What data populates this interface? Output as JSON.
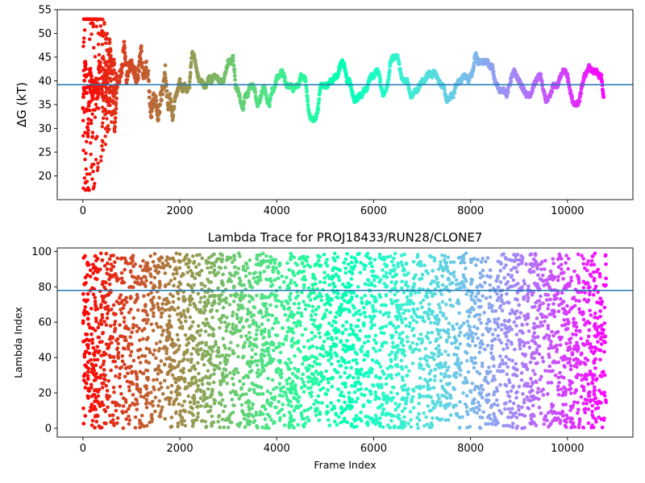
{
  "chart_data": [
    {
      "type": "scatter",
      "title": "",
      "xlabel": "",
      "ylabel": "ΔG (kT)",
      "xlim": [
        -530,
        11350
      ],
      "ylim": [
        15,
        55
      ],
      "xticks": [
        0,
        2000,
        4000,
        6000,
        8000,
        10000
      ],
      "yticks": [
        20,
        25,
        30,
        35,
        40,
        45,
        50,
        55
      ],
      "hline": 39.2,
      "hline_color": "#1f77b4",
      "colormap": "rainbow",
      "series": [
        {
          "x": [
            0,
            50,
            100,
            150,
            200,
            250,
            300,
            350,
            400,
            450,
            500,
            550,
            600,
            650,
            700,
            750,
            800,
            850,
            900,
            950,
            1000,
            1050,
            1100,
            1150,
            1200,
            1250,
            1300,
            1350,
            1400,
            1450,
            1500,
            1550,
            1600,
            1650,
            1700,
            1750,
            1800,
            1850,
            1900,
            1950,
            2000,
            2050,
            2100,
            2150,
            2200,
            2250,
            2300,
            2350,
            2400,
            2450,
            2500,
            2550,
            2600,
            2650,
            2700,
            2750,
            2800,
            2850,
            2900,
            2950,
            3000,
            3050,
            3100,
            3150,
            3200,
            3250,
            3300,
            3350,
            3400,
            3450,
            3500,
            3550,
            3600,
            3650,
            3700,
            3750,
            3800,
            3850,
            3900,
            3950,
            4000,
            4050,
            4100,
            4150,
            4200,
            4250,
            4300,
            4350,
            4400,
            4450,
            4500,
            4550,
            4600,
            4650,
            4700,
            4750,
            4800,
            4850,
            4900,
            4950,
            5000,
            5050,
            5100,
            5150,
            5200,
            5250,
            5300,
            5350,
            5400,
            5450,
            5500,
            5550,
            5600,
            5650,
            5700,
            5750,
            5800,
            5850,
            5900,
            5950,
            6000,
            6050,
            6100,
            6150,
            6200,
            6250,
            6300,
            6350,
            6400,
            6450,
            6500,
            6550,
            6600,
            6650,
            6700,
            6750,
            6800,
            6850,
            6900,
            6950,
            7000,
            7050,
            7100,
            7150,
            7200,
            7250,
            7300,
            7350,
            7400,
            7450,
            7500,
            7550,
            7600,
            7650,
            7700,
            7750,
            7800,
            7850,
            7900,
            7950,
            8000,
            8050,
            8100,
            8150,
            8200,
            8250,
            8300,
            8350,
            8400,
            8450,
            8500,
            8550,
            8600,
            8650,
            8700,
            8750,
            8800,
            8850,
            8900,
            8950,
            9000,
            9050,
            9100,
            9150,
            9200,
            9250,
            9300,
            9350,
            9400,
            9450,
            9500,
            9550,
            9600,
            9650,
            9700,
            9750,
            9800,
            9850,
            9900,
            9950,
            10000,
            10050,
            10100,
            10150,
            10200,
            10250,
            10300,
            10350,
            10400,
            10450,
            10500,
            10550,
            10600,
            10650,
            10700,
            10750
          ],
          "y": [
            34,
            45,
            28,
            42,
            37,
            40,
            38,
            44,
            36,
            41,
            39,
            48,
            43,
            29,
            38,
            41,
            42,
            47,
            41,
            43,
            44,
            42,
            41,
            42,
            47,
            40,
            44,
            41,
            33,
            36,
            36,
            32,
            36,
            38,
            42,
            35,
            37,
            32,
            36,
            38,
            40,
            38,
            39,
            38,
            39,
            46,
            45,
            42,
            40,
            40,
            39,
            39,
            41,
            40,
            41,
            41,
            40,
            40,
            40,
            42,
            44,
            44,
            45,
            39,
            38,
            36,
            34,
            37,
            37,
            39,
            39,
            38,
            35,
            36,
            38,
            39,
            36,
            35,
            38,
            38,
            41,
            41,
            42,
            41,
            39,
            39,
            39,
            38,
            39,
            39,
            41,
            41,
            40,
            34,
            32,
            32,
            32,
            34,
            39,
            39,
            39,
            39,
            40,
            40,
            41,
            41,
            43,
            44,
            43,
            40,
            40,
            38,
            36,
            36,
            37,
            37,
            38,
            38,
            40,
            41,
            41,
            42,
            42,
            39,
            37,
            38,
            40,
            44,
            45,
            45,
            45,
            42,
            40,
            40,
            40,
            37,
            37,
            38,
            38,
            39,
            40,
            40,
            41,
            42,
            41,
            42,
            41,
            40,
            39,
            39,
            36,
            36,
            37,
            37,
            39,
            40,
            40,
            41,
            41,
            40,
            41,
            42,
            46,
            44,
            44,
            44,
            44,
            44,
            43,
            43,
            40,
            39,
            38,
            38,
            38,
            37,
            39,
            41,
            42,
            41,
            40,
            39,
            38,
            37,
            37,
            37,
            39,
            40,
            41,
            41,
            38,
            36,
            36,
            37,
            39,
            39,
            39,
            41,
            42,
            42,
            41,
            38,
            36,
            35,
            35,
            36,
            39,
            41,
            42,
            43,
            42,
            42,
            42,
            41,
            41,
            36
          ]
        }
      ]
    },
    {
      "type": "scatter",
      "title": "Lambda Trace for PROJ18433/RUN28/CLONE7",
      "xlabel": "Frame Index",
      "ylabel": "Lambda Index",
      "xlim": [
        -530,
        11350
      ],
      "ylim": [
        -5,
        102
      ],
      "xticks": [
        0,
        2000,
        4000,
        6000,
        8000,
        10000
      ],
      "yticks": [
        0,
        20,
        40,
        60,
        80,
        100
      ],
      "hline": 78,
      "hline_color": "#1f77b4",
      "colormap": "rainbow",
      "series": [
        {
          "x_range": [
            0,
            10800
          ],
          "y_range": [
            0,
            99
          ]
        }
      ]
    }
  ]
}
